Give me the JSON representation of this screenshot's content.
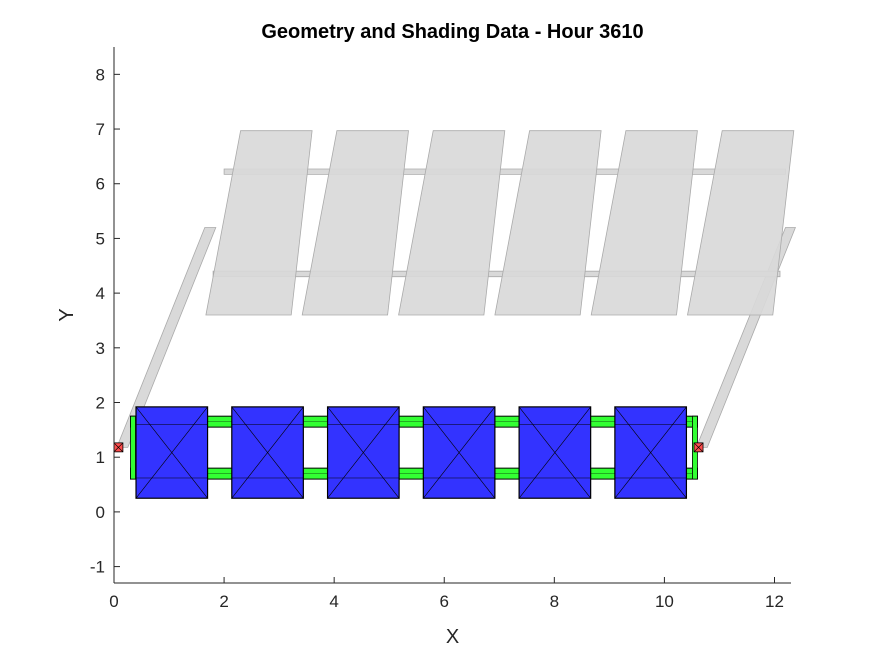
{
  "chart_data": {
    "type": "scatter",
    "title": "Geometry and Shading Data - Hour 3610",
    "xlabel": "X",
    "ylabel": "Y",
    "xlim": [
      0,
      12.3
    ],
    "ylim": [
      -1.3,
      8.5
    ],
    "xticks": [
      0,
      2,
      4,
      6,
      8,
      10,
      12
    ],
    "yticks": [
      -1,
      0,
      1,
      2,
      3,
      4,
      5,
      6,
      7,
      8
    ],
    "grid": false,
    "colors": {
      "module": "#3333ff",
      "shade": "#d9d9d9",
      "shade_edge": "#aaaaaa",
      "beam": "#33ff33",
      "marker": "#ff4d4d"
    },
    "modules": [
      {
        "x0": 0.4,
        "x1": 1.7,
        "y0": 0.25,
        "y1": 1.92
      },
      {
        "x0": 2.14,
        "x1": 3.44,
        "y0": 0.25,
        "y1": 1.92
      },
      {
        "x0": 3.88,
        "x1": 5.18,
        "y0": 0.25,
        "y1": 1.92
      },
      {
        "x0": 5.62,
        "x1": 6.92,
        "y0": 0.25,
        "y1": 1.92
      },
      {
        "x0": 7.36,
        "x1": 8.66,
        "y0": 0.25,
        "y1": 1.92
      },
      {
        "x0": 9.1,
        "x1": 10.4,
        "y0": 0.25,
        "y1": 1.92
      }
    ],
    "beams": [
      {
        "x0": 0.3,
        "x1": 10.6,
        "y0": 1.55,
        "y1": 1.75
      },
      {
        "x0": 0.3,
        "x1": 10.6,
        "y0": 0.6,
        "y1": 0.8
      }
    ],
    "shade_panels": [
      [
        [
          2.3,
          6.97
        ],
        [
          3.6,
          6.97
        ],
        [
          3.22,
          3.6
        ],
        [
          1.67,
          3.6
        ]
      ],
      [
        [
          4.05,
          6.97
        ],
        [
          5.35,
          6.97
        ],
        [
          4.97,
          3.6
        ],
        [
          3.42,
          3.6
        ]
      ],
      [
        [
          5.8,
          6.97
        ],
        [
          7.1,
          6.97
        ],
        [
          6.72,
          3.6
        ],
        [
          5.17,
          3.6
        ]
      ],
      [
        [
          7.55,
          6.97
        ],
        [
          8.85,
          6.97
        ],
        [
          8.47,
          3.6
        ],
        [
          6.92,
          3.6
        ]
      ],
      [
        [
          9.3,
          6.97
        ],
        [
          10.6,
          6.97
        ],
        [
          10.22,
          3.6
        ],
        [
          8.67,
          3.6
        ]
      ],
      [
        [
          11.05,
          6.97
        ],
        [
          12.35,
          6.97
        ],
        [
          11.97,
          3.6
        ],
        [
          10.42,
          3.6
        ]
      ]
    ],
    "shade_rails": [
      [
        [
          2.0,
          6.27
        ],
        [
          12.2,
          6.27
        ],
        [
          12.2,
          6.17
        ],
        [
          2.0,
          6.17
        ]
      ],
      [
        [
          1.8,
          4.4
        ],
        [
          12.1,
          4.4
        ],
        [
          12.1,
          4.3
        ],
        [
          1.8,
          4.3
        ]
      ]
    ],
    "shade_struts": [
      [
        [
          0.05,
          1.18
        ],
        [
          1.65,
          5.2
        ],
        [
          1.85,
          5.2
        ],
        [
          0.25,
          1.18
        ]
      ],
      [
        [
          10.58,
          1.18
        ],
        [
          12.2,
          5.2
        ],
        [
          12.38,
          5.2
        ],
        [
          10.78,
          1.18
        ]
      ]
    ],
    "markers": [
      {
        "x": 0.08,
        "y": 1.18
      },
      {
        "x": 10.62,
        "y": 1.18
      }
    ]
  }
}
